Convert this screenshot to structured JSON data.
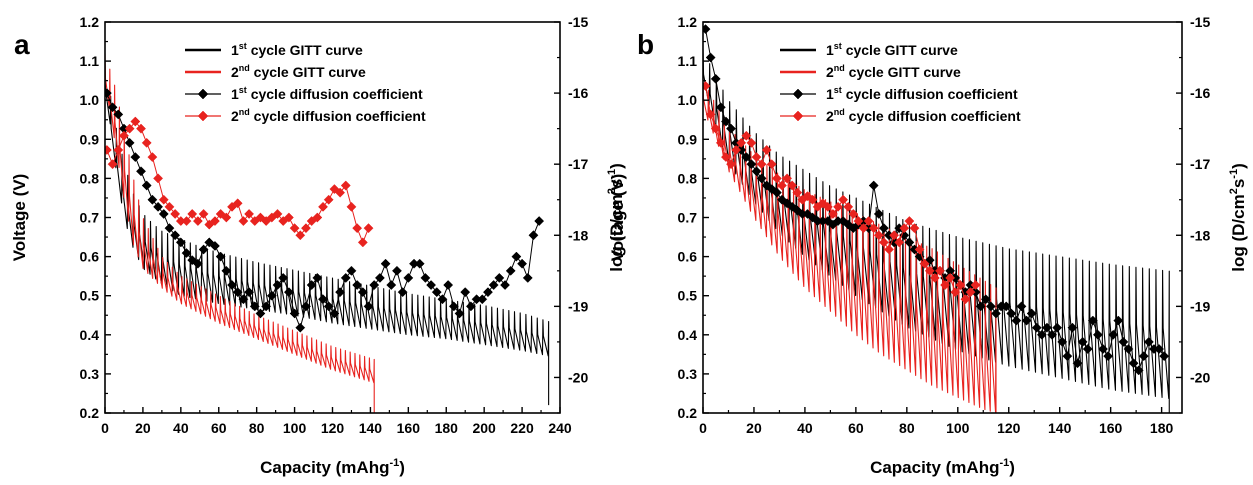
{
  "chart_data": [
    {
      "type": "line",
      "panel_letter": "a",
      "xlabel_main": "Capacity (mAhg",
      "xlabel_sup": "-1",
      "xlabel_tail": ")",
      "ylabel": "Voltage (V)",
      "y2label_main": "log (D/cm",
      "y2label_sup1": "2",
      "y2label_mid": "s",
      "y2label_sup2": "-1",
      "y2label_tail": ")",
      "xlim": [
        0,
        240
      ],
      "ylim": [
        0.2,
        1.2
      ],
      "y2lim": [
        -20.5,
        -15
      ],
      "xticks": [
        "0",
        "20",
        "40",
        "60",
        "80",
        "100",
        "120",
        "140",
        "160",
        "180",
        "200",
        "220",
        "240"
      ],
      "yticks": [
        "0.2",
        "0.3",
        "0.4",
        "0.5",
        "0.6",
        "0.7",
        "0.8",
        "0.9",
        "1.0",
        "1.1",
        "1.2"
      ],
      "y2ticks": [
        "-20",
        "-19",
        "-18",
        "-17",
        "-16",
        "-15"
      ],
      "legend_position": "top-center",
      "legend": [
        {
          "num": "1",
          "sup": "st",
          "text": " cycle GITT curve",
          "color": "#000000",
          "marker": "none"
        },
        {
          "num": "2",
          "sup": "nd",
          "text": " cycle GITT curve",
          "color": "#e8231f",
          "marker": "none"
        },
        {
          "num": "1",
          "sup": "st",
          "text": " cycle diffusion coefficient",
          "color": "#000000",
          "marker": "diamond"
        },
        {
          "num": "2",
          "sup": "nd",
          "text": " cycle diffusion coefficient",
          "color": "#e8231f",
          "marker": "diamond"
        }
      ],
      "series": [
        {
          "name": "1st cycle GITT curve",
          "axis": "left",
          "color": "#000000",
          "kind": "gitt",
          "pulses": 78,
          "x_end": 234,
          "relaxed_x": [
            0,
            5,
            10,
            15,
            20,
            25,
            30,
            40,
            50,
            60,
            80,
            100,
            120,
            140,
            160,
            180,
            200,
            220,
            230
          ],
          "relaxed_y": [
            1.1,
            0.95,
            0.84,
            0.76,
            0.71,
            0.685,
            0.665,
            0.645,
            0.625,
            0.61,
            0.585,
            0.565,
            0.545,
            0.525,
            0.505,
            0.49,
            0.475,
            0.455,
            0.44
          ],
          "loaded_x": [
            0,
            5,
            10,
            15,
            20,
            30,
            40,
            60,
            80,
            100,
            120,
            140,
            160,
            180,
            200,
            220,
            230
          ],
          "loaded_y": [
            1.05,
            0.85,
            0.7,
            0.62,
            0.57,
            0.53,
            0.5,
            0.48,
            0.465,
            0.45,
            0.43,
            0.415,
            0.4,
            0.39,
            0.375,
            0.36,
            0.35
          ],
          "tail_y": 0.22
        },
        {
          "name": "2nd cycle GITT curve",
          "axis": "left",
          "color": "#e8231f",
          "kind": "gitt",
          "pulses": 56,
          "x_end": 142,
          "relaxed_x": [
            0,
            5,
            10,
            15,
            20,
            30,
            40,
            60,
            80,
            100,
            120,
            140
          ],
          "relaxed_y": [
            1.12,
            1.04,
            0.93,
            0.8,
            0.7,
            0.6,
            0.55,
            0.5,
            0.45,
            0.41,
            0.37,
            0.34
          ],
          "loaded_x": [
            0,
            5,
            10,
            15,
            20,
            30,
            40,
            60,
            80,
            100,
            120,
            140
          ],
          "loaded_y": [
            1.05,
            0.9,
            0.75,
            0.63,
            0.57,
            0.52,
            0.48,
            0.43,
            0.39,
            0.35,
            0.31,
            0.28
          ],
          "tail_y": 0.2
        },
        {
          "name": "1st cycle diffusion coefficient",
          "axis": "right",
          "color": "#000000",
          "kind": "markers",
          "x": [
            1,
            4,
            7,
            10,
            13,
            16,
            19,
            22,
            25,
            28,
            31,
            34,
            37,
            40,
            43,
            46,
            49,
            52,
            55,
            58,
            61,
            64,
            67,
            70,
            73,
            76,
            79,
            82,
            85,
            88,
            91,
            94,
            97,
            100,
            103,
            106,
            109,
            112,
            115,
            118,
            121,
            124,
            127,
            130,
            133,
            136,
            139,
            142,
            145,
            148,
            151,
            154,
            157,
            160,
            163,
            166,
            169,
            172,
            175,
            178,
            181,
            184,
            187,
            190,
            193,
            196,
            199,
            202,
            205,
            208,
            211,
            214,
            217,
            220,
            223,
            226,
            229
          ],
          "y": [
            -16.0,
            -16.2,
            -16.3,
            -16.5,
            -16.7,
            -16.9,
            -17.1,
            -17.3,
            -17.5,
            -17.6,
            -17.7,
            -17.9,
            -18.0,
            -18.1,
            -18.25,
            -18.35,
            -18.4,
            -18.2,
            -18.1,
            -18.15,
            -18.3,
            -18.5,
            -18.7,
            -18.8,
            -18.9,
            -18.8,
            -19.0,
            -19.1,
            -19.0,
            -18.85,
            -18.7,
            -18.6,
            -18.8,
            -19.1,
            -19.3,
            -19.0,
            -18.7,
            -18.6,
            -18.9,
            -19.0,
            -19.1,
            -18.8,
            -18.6,
            -18.5,
            -18.7,
            -18.8,
            -19.0,
            -18.7,
            -18.6,
            -18.4,
            -18.7,
            -18.5,
            -18.8,
            -18.6,
            -18.4,
            -18.4,
            -18.6,
            -18.7,
            -18.8,
            -18.9,
            -18.7,
            -19.0,
            -19.1,
            -18.8,
            -19.0,
            -18.9,
            -18.9,
            -18.8,
            -18.7,
            -18.6,
            -18.7,
            -18.5,
            -18.3,
            -18.4,
            -18.6,
            -18.0,
            -17.8
          ]
        },
        {
          "name": "2nd cycle diffusion coefficient",
          "axis": "right",
          "color": "#e8231f",
          "kind": "markers",
          "x": [
            1,
            4,
            7,
            10,
            13,
            16,
            19,
            22,
            25,
            28,
            31,
            34,
            37,
            40,
            43,
            46,
            49,
            52,
            55,
            58,
            61,
            64,
            67,
            70,
            73,
            76,
            79,
            82,
            85,
            88,
            91,
            94,
            97,
            100,
            103,
            106,
            109,
            112,
            115,
            118,
            121,
            124,
            127,
            130,
            133,
            136,
            139
          ],
          "y": [
            -16.8,
            -17.0,
            -16.8,
            -16.6,
            -16.5,
            -16.4,
            -16.5,
            -16.7,
            -16.9,
            -17.2,
            -17.5,
            -17.6,
            -17.7,
            -17.8,
            -17.8,
            -17.7,
            -17.8,
            -17.7,
            -17.85,
            -17.8,
            -17.7,
            -17.75,
            -17.6,
            -17.55,
            -17.8,
            -17.7,
            -17.8,
            -17.75,
            -17.8,
            -17.75,
            -17.7,
            -17.8,
            -17.75,
            -17.9,
            -18.0,
            -17.9,
            -17.8,
            -17.75,
            -17.6,
            -17.5,
            -17.35,
            -17.4,
            -17.3,
            -17.6,
            -17.9,
            -18.1,
            -17.9
          ]
        }
      ]
    },
    {
      "type": "line",
      "panel_letter": "b",
      "xlabel_main": "Capacity (mAhg",
      "xlabel_sup": "-1",
      "xlabel_tail": ")",
      "ylabel": "Voltage (V)",
      "y2label_main": "log (D/cm",
      "y2label_sup1": "2",
      "y2label_mid": "s",
      "y2label_sup2": "-1",
      "y2label_tail": ")",
      "xlim": [
        0,
        188
      ],
      "ylim": [
        0.2,
        1.2
      ],
      "y2lim": [
        -20.5,
        -15
      ],
      "xticks": [
        "0",
        "20",
        "40",
        "60",
        "80",
        "100",
        "120",
        "140",
        "160",
        "180"
      ],
      "yticks": [
        "0.2",
        "0.3",
        "0.4",
        "0.5",
        "0.6",
        "0.7",
        "0.8",
        "0.9",
        "1.0",
        "1.1",
        "1.2"
      ],
      "y2ticks": [
        "-20",
        "-19",
        "-18",
        "-17",
        "-16",
        "-15"
      ],
      "legend_position": "top-center",
      "legend": [
        {
          "num": "1",
          "sup": "st",
          "text": " cycle GITT curve",
          "color": "#000000",
          "marker": "none"
        },
        {
          "num": "2",
          "sup": "nd",
          "text": " cycle GITT curve",
          "color": "#e8231f",
          "marker": "none"
        },
        {
          "num": "1",
          "sup": "st",
          "text": " cycle diffusion coefficient",
          "color": "#000000",
          "marker": "diamond"
        },
        {
          "num": "2",
          "sup": "nd",
          "text": " cycle diffusion coefficient",
          "color": "#e8231f",
          "marker": "diamond"
        }
      ],
      "series": [
        {
          "name": "1st cycle GITT curve",
          "axis": "left",
          "color": "#000000",
          "kind": "gitt",
          "pulses": 70,
          "x_end": 183,
          "relaxed_x": [
            0,
            5,
            10,
            20,
            30,
            40,
            50,
            60,
            70,
            80,
            90,
            100,
            120,
            140,
            160,
            180
          ],
          "relaxed_y": [
            1.13,
            1.06,
            1.0,
            0.92,
            0.86,
            0.82,
            0.78,
            0.75,
            0.72,
            0.69,
            0.67,
            0.65,
            0.62,
            0.6,
            0.58,
            0.565
          ],
          "loaded_x": [
            0,
            5,
            10,
            20,
            30,
            40,
            50,
            60,
            70,
            80,
            90,
            100,
            120,
            140,
            160,
            180
          ],
          "loaded_y": [
            1.05,
            0.92,
            0.84,
            0.74,
            0.66,
            0.6,
            0.55,
            0.5,
            0.46,
            0.42,
            0.39,
            0.36,
            0.32,
            0.29,
            0.26,
            0.24
          ],
          "tail_y": 0.2
        },
        {
          "name": "2nd cycle GITT curve",
          "axis": "left",
          "color": "#e8231f",
          "kind": "gitt",
          "pulses": 55,
          "x_end": 115,
          "relaxed_x": [
            0,
            5,
            10,
            20,
            30,
            40,
            50,
            60,
            70,
            80,
            90,
            100,
            110,
            115
          ],
          "relaxed_y": [
            1.05,
            0.99,
            0.93,
            0.86,
            0.81,
            0.77,
            0.74,
            0.71,
            0.68,
            0.65,
            0.62,
            0.58,
            0.54,
            0.52
          ],
          "loaded_x": [
            0,
            5,
            10,
            20,
            30,
            40,
            50,
            60,
            70,
            80,
            90,
            100,
            110,
            115
          ],
          "loaded_y": [
            0.98,
            0.9,
            0.82,
            0.7,
            0.6,
            0.52,
            0.46,
            0.4,
            0.35,
            0.31,
            0.27,
            0.24,
            0.21,
            0.2
          ],
          "tail_y": 0.2
        },
        {
          "name": "1st cycle diffusion coefficient",
          "axis": "right",
          "color": "#000000",
          "kind": "markers",
          "x": [
            1,
            3,
            5,
            7,
            9,
            11,
            13,
            15,
            17,
            19,
            21,
            23,
            25,
            27,
            29,
            31,
            33,
            35,
            37,
            39,
            41,
            43,
            45,
            47,
            49,
            51,
            53,
            55,
            57,
            59,
            61,
            63,
            65,
            67,
            69,
            71,
            73,
            75,
            77,
            79,
            81,
            83,
            85,
            87,
            89,
            91,
            93,
            95,
            97,
            99,
            101,
            103,
            105,
            107,
            109,
            111,
            113,
            115,
            117,
            119,
            121,
            123,
            125,
            127,
            129,
            131,
            133,
            135,
            137,
            139,
            141,
            143,
            145,
            147,
            149,
            151,
            153,
            155,
            157,
            159,
            161,
            163,
            165,
            167,
            169,
            171,
            173,
            175,
            177,
            179,
            181
          ],
          "y": [
            -15.1,
            -15.5,
            -15.8,
            -16.2,
            -16.4,
            -16.5,
            -16.7,
            -16.8,
            -16.9,
            -17.0,
            -17.1,
            -17.2,
            -17.3,
            -17.35,
            -17.4,
            -17.5,
            -17.55,
            -17.6,
            -17.65,
            -17.7,
            -17.7,
            -17.75,
            -17.8,
            -17.8,
            -17.8,
            -17.85,
            -17.8,
            -17.8,
            -17.85,
            -17.9,
            -17.85,
            -17.8,
            -17.9,
            -17.3,
            -17.7,
            -17.9,
            -18.0,
            -18.1,
            -17.9,
            -18.0,
            -18.1,
            -18.2,
            -18.3,
            -18.4,
            -18.35,
            -18.5,
            -18.5,
            -18.6,
            -18.5,
            -18.6,
            -18.7,
            -18.8,
            -18.7,
            -18.8,
            -19.0,
            -18.9,
            -19.0,
            -19.1,
            -19.0,
            -19.0,
            -19.1,
            -19.2,
            -19.0,
            -19.2,
            -19.1,
            -19.3,
            -19.4,
            -19.3,
            -19.4,
            -19.3,
            -19.5,
            -19.7,
            -19.3,
            -19.8,
            -19.5,
            -19.6,
            -19.2,
            -19.4,
            -19.6,
            -19.7,
            -19.4,
            -19.2,
            -19.5,
            -19.6,
            -19.8,
            -19.9,
            -19.7,
            -19.5,
            -19.6,
            -19.6,
            -19.7
          ]
        },
        {
          "name": "2nd cycle diffusion coefficient",
          "axis": "right",
          "color": "#e8231f",
          "kind": "markers",
          "x": [
            1,
            3,
            5,
            7,
            9,
            11,
            13,
            15,
            17,
            19,
            21,
            23,
            25,
            27,
            29,
            31,
            33,
            35,
            37,
            39,
            41,
            43,
            45,
            47,
            49,
            51,
            53,
            55,
            57,
            59,
            61,
            63,
            65,
            67,
            69,
            71,
            73,
            75,
            77,
            79,
            81,
            83,
            85,
            87,
            89,
            91,
            93,
            95,
            97,
            99,
            101,
            103,
            105,
            107
          ],
          "y": [
            -15.9,
            -16.3,
            -16.5,
            -16.7,
            -16.9,
            -17.0,
            -16.8,
            -16.7,
            -16.6,
            -16.7,
            -16.9,
            -17.0,
            -16.8,
            -17.0,
            -17.2,
            -17.3,
            -17.2,
            -17.3,
            -17.4,
            -17.5,
            -17.45,
            -17.5,
            -17.6,
            -17.55,
            -17.6,
            -17.7,
            -17.6,
            -17.5,
            -17.6,
            -17.7,
            -17.8,
            -17.9,
            -17.8,
            -17.9,
            -18.0,
            -18.1,
            -18.2,
            -18.0,
            -18.1,
            -17.9,
            -17.8,
            -17.9,
            -18.2,
            -18.4,
            -18.5,
            -18.6,
            -18.5,
            -18.7,
            -18.6,
            -18.8,
            -18.7,
            -18.9,
            -18.8,
            -18.7
          ]
        }
      ]
    }
  ]
}
